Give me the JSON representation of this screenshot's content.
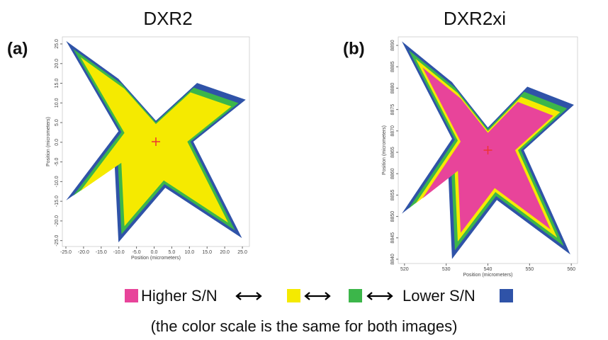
{
  "chart_data": [
    {
      "type": "image",
      "title": "DXR2",
      "panel_label": "(a)",
      "xlabel": "Position (micrometers)",
      "ylabel": "Position (micrometers)",
      "xlim": [
        -26,
        27
      ],
      "ylim": [
        -26.5,
        26.8
      ],
      "xticks": [
        {
          "value": -25,
          "label": "-25.0"
        },
        {
          "value": -20,
          "label": "-20.0"
        },
        {
          "value": -15,
          "label": "-15.0"
        },
        {
          "value": -10,
          "label": "-10.0"
        },
        {
          "value": -5,
          "label": "-5.0"
        },
        {
          "value": 0,
          "label": "0.0"
        },
        {
          "value": 5,
          "label": "5.0"
        },
        {
          "value": 10,
          "label": "10.0"
        },
        {
          "value": 15,
          "label": "15.0"
        },
        {
          "value": 20,
          "label": "20.0"
        },
        {
          "value": 25,
          "label": "25.0"
        }
      ],
      "yticks": [
        {
          "value": -25,
          "label": "-25.0"
        },
        {
          "value": -20,
          "label": "-20.0"
        },
        {
          "value": -15,
          "label": "-15.0"
        },
        {
          "value": -10,
          "label": "-10.0"
        },
        {
          "value": -5,
          "label": "-5.0"
        },
        {
          "value": 0,
          "label": "0.0"
        },
        {
          "value": 5,
          "label": "5.0"
        },
        {
          "value": 10,
          "label": "10.0"
        },
        {
          "value": 15,
          "label": "15.0"
        },
        {
          "value": 20,
          "label": "20.0"
        },
        {
          "value": 25,
          "label": "25.0"
        }
      ]
    },
    {
      "type": "image",
      "title": "DXR2xi",
      "panel_label": "(b)",
      "xlabel": "Position (micrometers)",
      "ylabel": "Position (micrometers)",
      "xlim": [
        518.5,
        561.5
      ],
      "ylim": [
        8839,
        8892
      ],
      "xticks": [
        520,
        530,
        540,
        550,
        560
      ],
      "yticks": [
        8840,
        8845,
        8850,
        8855,
        8860,
        8865,
        8870,
        8875,
        8880,
        8885,
        8890
      ]
    }
  ],
  "legend": [
    {
      "label": "Higher S/N",
      "color": "#e8449a"
    },
    {
      "color": "#f5ea00"
    },
    {
      "color": "#3cb64a"
    },
    {
      "label": "Lower S/N",
      "color": "#2f53a8"
    }
  ],
  "caption": "(the color scale is the same for both images)"
}
